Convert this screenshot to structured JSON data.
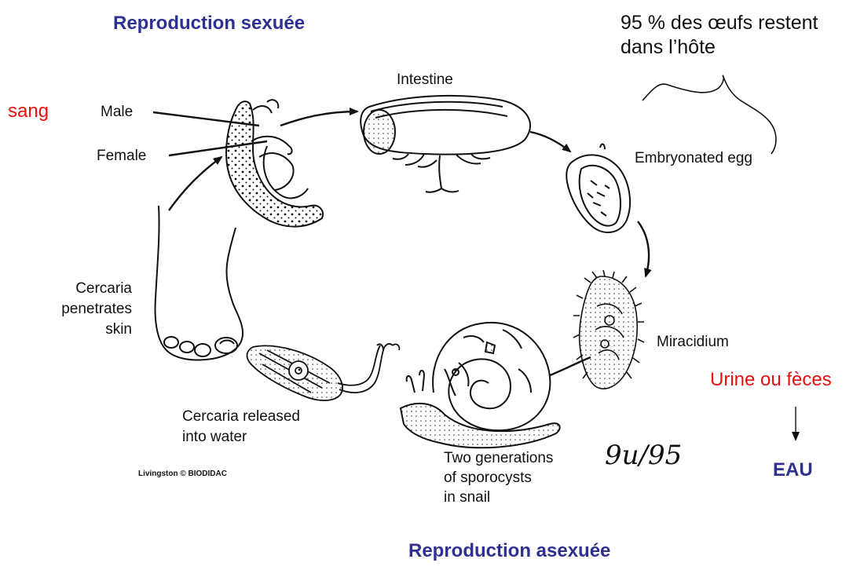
{
  "titles": {
    "sexual": "Reproduction sexuée",
    "asexual": "Reproduction asexuée"
  },
  "annotations": {
    "blood": "sang",
    "eggs_note_line1": "95 % des œufs restent",
    "eggs_note_line2": "dans l’hôte",
    "excretion": "Urine ou fèces",
    "water": "EAU",
    "handwritten_date": "9u/95"
  },
  "diagram_labels": {
    "male": "Male",
    "female": "Female",
    "intestine": "Intestine",
    "embryonated_egg": "Embryonated egg",
    "miracidium": "Miracidium",
    "sporocysts_line1": "Two generations",
    "sporocysts_line2": "of sporocysts",
    "sporocysts_line3": "in snail",
    "cercaria_released_line1": "Cercaria released",
    "cercaria_released_line2": "into water",
    "cercaria_penetrates_line1": "Cercaria",
    "cercaria_penetrates_line2": "penetrates",
    "cercaria_penetrates_line3": "skin",
    "credit": "Livingston © BIODIDAC"
  },
  "colors": {
    "title_blue": "#2e3191",
    "annotation_red": "#e8110f",
    "ink": "#111111"
  }
}
